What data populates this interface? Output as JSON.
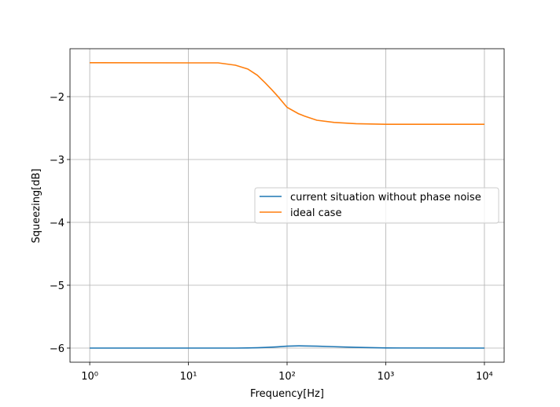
{
  "chart_data": {
    "type": "line",
    "xlabel": "Frequency[Hz]",
    "ylabel": "Squeezing[dB]",
    "x": [
      1,
      10,
      20,
      30,
      40,
      50,
      60,
      70,
      80,
      100,
      130,
      150,
      200,
      300,
      500,
      1000,
      10000
    ],
    "series": [
      {
        "name": "current situation without phase noise",
        "color": "#1f77b4",
        "values": [
          -6,
          -6,
          -6,
          -6,
          -5.998,
          -5.995,
          -5.99,
          -5.985,
          -5.98,
          -5.97,
          -5.965,
          -5.966,
          -5.97,
          -5.978,
          -5.988,
          -5.998,
          -6
        ]
      },
      {
        "name": "ideal case",
        "color": "#ff7f0e",
        "values": [
          -1.46,
          -1.4625,
          -1.4625,
          -1.5,
          -1.56,
          -1.66,
          -1.78,
          -1.89,
          -1.99,
          -2.17,
          -2.27,
          -2.31,
          -2.375,
          -2.41,
          -2.43,
          -2.44,
          -2.44
        ]
      }
    ],
    "xscale": "log",
    "xlim": [
      0.631,
      15849
    ],
    "xticks": [
      {
        "value": 1,
        "label": "10⁰"
      },
      {
        "value": 10,
        "label": "10¹"
      },
      {
        "value": 100,
        "label": "10²"
      },
      {
        "value": 1000,
        "label": "10³"
      },
      {
        "value": 10000,
        "label": "10⁴"
      }
    ],
    "ylim": [
      -6.225,
      -1.2375
    ],
    "yticks": [
      {
        "value": -6,
        "label": "−6"
      },
      {
        "value": -5,
        "label": "−5"
      },
      {
        "value": -4,
        "label": "−4"
      },
      {
        "value": -3,
        "label": "−3"
      },
      {
        "value": -2,
        "label": "−2"
      }
    ],
    "grid": true,
    "legend": "center right"
  }
}
